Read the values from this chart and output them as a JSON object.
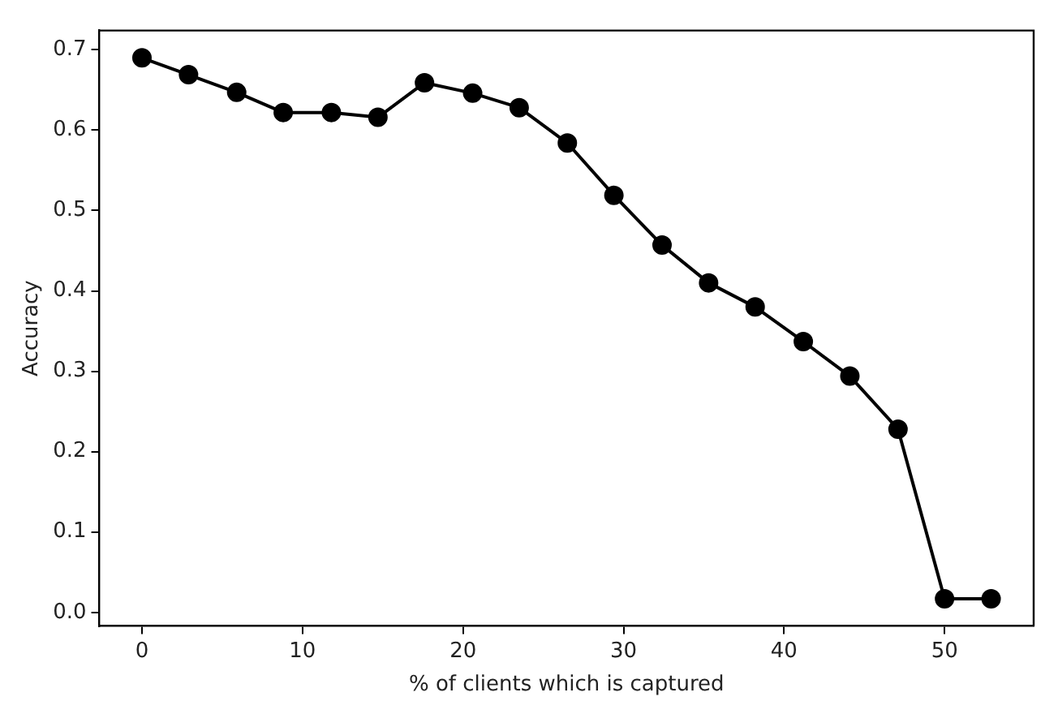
{
  "chart_data": {
    "type": "line",
    "xlabel": "% of clients which is captured",
    "ylabel": "Accuracy",
    "x": [
      0,
      2.9,
      5.9,
      8.8,
      11.8,
      14.7,
      17.6,
      20.6,
      23.5,
      26.5,
      29.4,
      32.4,
      35.3,
      38.2,
      41.2,
      44.1,
      47.1,
      50,
      52.9
    ],
    "series": [
      {
        "color": "#000000",
        "values": [
          0.69,
          0.669,
          0.647,
          0.622,
          0.622,
          0.616,
          0.659,
          0.646,
          0.628,
          0.584,
          0.519,
          0.457,
          0.41,
          0.38,
          0.337,
          0.294,
          0.228,
          0.017,
          0.017
        ]
      }
    ],
    "xlim": [
      -2.65,
      55.55
    ],
    "ylim": [
      -0.017,
      0.724
    ],
    "xticks": [
      0,
      10,
      20,
      30,
      40,
      50
    ],
    "yticks": [
      {
        "value": 0,
        "label": "0.0"
      },
      {
        "value": 0.1,
        "label": "0.1"
      },
      {
        "value": 0.2,
        "label": "0.2"
      },
      {
        "value": 0.3,
        "label": "0.3"
      },
      {
        "value": 0.4,
        "label": "0.4"
      },
      {
        "value": 0.5,
        "label": "0.5"
      },
      {
        "value": 0.6,
        "label": "0.6"
      },
      {
        "value": 0.7,
        "label": "0.7"
      }
    ],
    "grid": false,
    "legend": false,
    "marker": "circle",
    "line_style": "solid"
  }
}
